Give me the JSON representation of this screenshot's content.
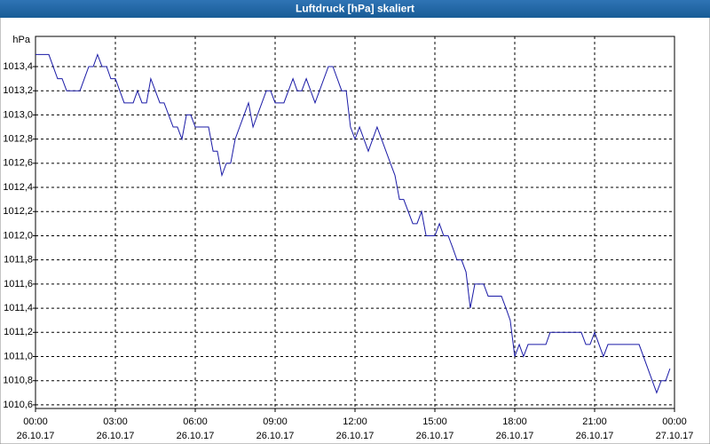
{
  "chart_data": {
    "type": "line",
    "title": "Luftdruck [hPa] skaliert",
    "y_unit": "hPa",
    "color": "#1a1aa6",
    "grid": true,
    "x": [
      0,
      0.5,
      0.83,
      1,
      1.17,
      1.67,
      2,
      2.17,
      2.33,
      2.5,
      2.67,
      2.83,
      3,
      3.33,
      3.67,
      3.83,
      4,
      4.17,
      4.33,
      4.67,
      4.83,
      5.17,
      5.33,
      5.5,
      5.67,
      5.83,
      6,
      6.5,
      6.67,
      6.83,
      7,
      7.17,
      7.33,
      7.5,
      8,
      8.17,
      8.67,
      8.83,
      9,
      9.33,
      9.67,
      9.83,
      10,
      10.17,
      10.5,
      11,
      11.17,
      11.5,
      11.67,
      11.83,
      12,
      12.17,
      12.5,
      12.83,
      13.33,
      13.5,
      13.67,
      13.83,
      14.17,
      14.33,
      14.5,
      14.67,
      15,
      15.17,
      15.33,
      15.5,
      15.67,
      15.83,
      16,
      16.17,
      16.33,
      16.5,
      16.83,
      17,
      17.5,
      17.67,
      17.83,
      18,
      18.17,
      18.33,
      18.5,
      19.17,
      19.33,
      20.5,
      20.67,
      20.83,
      21,
      21.33,
      21.5,
      22.67,
      23.33,
      23.5,
      23.67,
      23.83
    ],
    "values": [
      1013.5,
      1013.5,
      1013.3,
      1013.3,
      1013.2,
      1013.2,
      1013.4,
      1013.4,
      1013.5,
      1013.4,
      1013.4,
      1013.3,
      1013.3,
      1013.1,
      1013.1,
      1013.2,
      1013.1,
      1013.1,
      1013.3,
      1013.1,
      1013.1,
      1012.9,
      1012.9,
      1012.8,
      1013.0,
      1013.0,
      1012.9,
      1012.9,
      1012.7,
      1012.7,
      1012.5,
      1012.6,
      1012.6,
      1012.8,
      1013.1,
      1012.9,
      1013.2,
      1013.2,
      1013.1,
      1013.1,
      1013.3,
      1013.2,
      1013.2,
      1013.3,
      1013.1,
      1013.4,
      1013.4,
      1013.2,
      1013.2,
      1012.9,
      1012.8,
      1012.9,
      1012.7,
      1012.9,
      1012.6,
      1012.5,
      1012.3,
      1012.3,
      1012.1,
      1012.1,
      1012.2,
      1012.0,
      1012.0,
      1012.1,
      1012.0,
      1012.0,
      1011.9,
      1011.8,
      1011.8,
      1011.7,
      1011.4,
      1011.6,
      1011.6,
      1011.5,
      1011.5,
      1011.4,
      1011.3,
      1011.0,
      1011.1,
      1011.0,
      1011.1,
      1011.1,
      1011.2,
      1011.2,
      1011.1,
      1011.1,
      1011.2,
      1011.0,
      1011.1,
      1011.1,
      1010.7,
      1010.8,
      1010.8,
      1010.9
    ],
    "xlim": [
      0,
      24
    ],
    "xticks": [
      {
        "value": 0,
        "label": "00:00 26.10.17"
      },
      {
        "value": 3,
        "label": "03:00 26.10.17"
      },
      {
        "value": 6,
        "label": "06:00 26.10.17"
      },
      {
        "value": 9,
        "label": "09:00 26.10.17"
      },
      {
        "value": 12,
        "label": "12:00 26.10.17"
      },
      {
        "value": 15,
        "label": "15:00 26.10.17"
      },
      {
        "value": 18,
        "label": "18:00 26.10.17"
      },
      {
        "value": 21,
        "label": "21:00 26.10.17"
      },
      {
        "value": 24,
        "label": "00:00 27.10.17"
      }
    ],
    "ylim": [
      1010.57,
      1013.65
    ],
    "yticks": [
      {
        "value": 1010.6,
        "label": "1010,6"
      },
      {
        "value": 1010.8,
        "label": "1010,8"
      },
      {
        "value": 1011.0,
        "label": "1011,0"
      },
      {
        "value": 1011.2,
        "label": "1011,2"
      },
      {
        "value": 1011.4,
        "label": "1011,4"
      },
      {
        "value": 1011.6,
        "label": "1011,6"
      },
      {
        "value": 1011.8,
        "label": "1011,8"
      },
      {
        "value": 1012.0,
        "label": "1012,0"
      },
      {
        "value": 1012.2,
        "label": "1012,2"
      },
      {
        "value": 1012.4,
        "label": "1012,4"
      },
      {
        "value": 1012.6,
        "label": "1012,6"
      },
      {
        "value": 1012.8,
        "label": "1012,8"
      },
      {
        "value": 1013.0,
        "label": "1013,0"
      },
      {
        "value": 1013.2,
        "label": "1013,2"
      },
      {
        "value": 1013.4,
        "label": "1013,4"
      }
    ]
  }
}
